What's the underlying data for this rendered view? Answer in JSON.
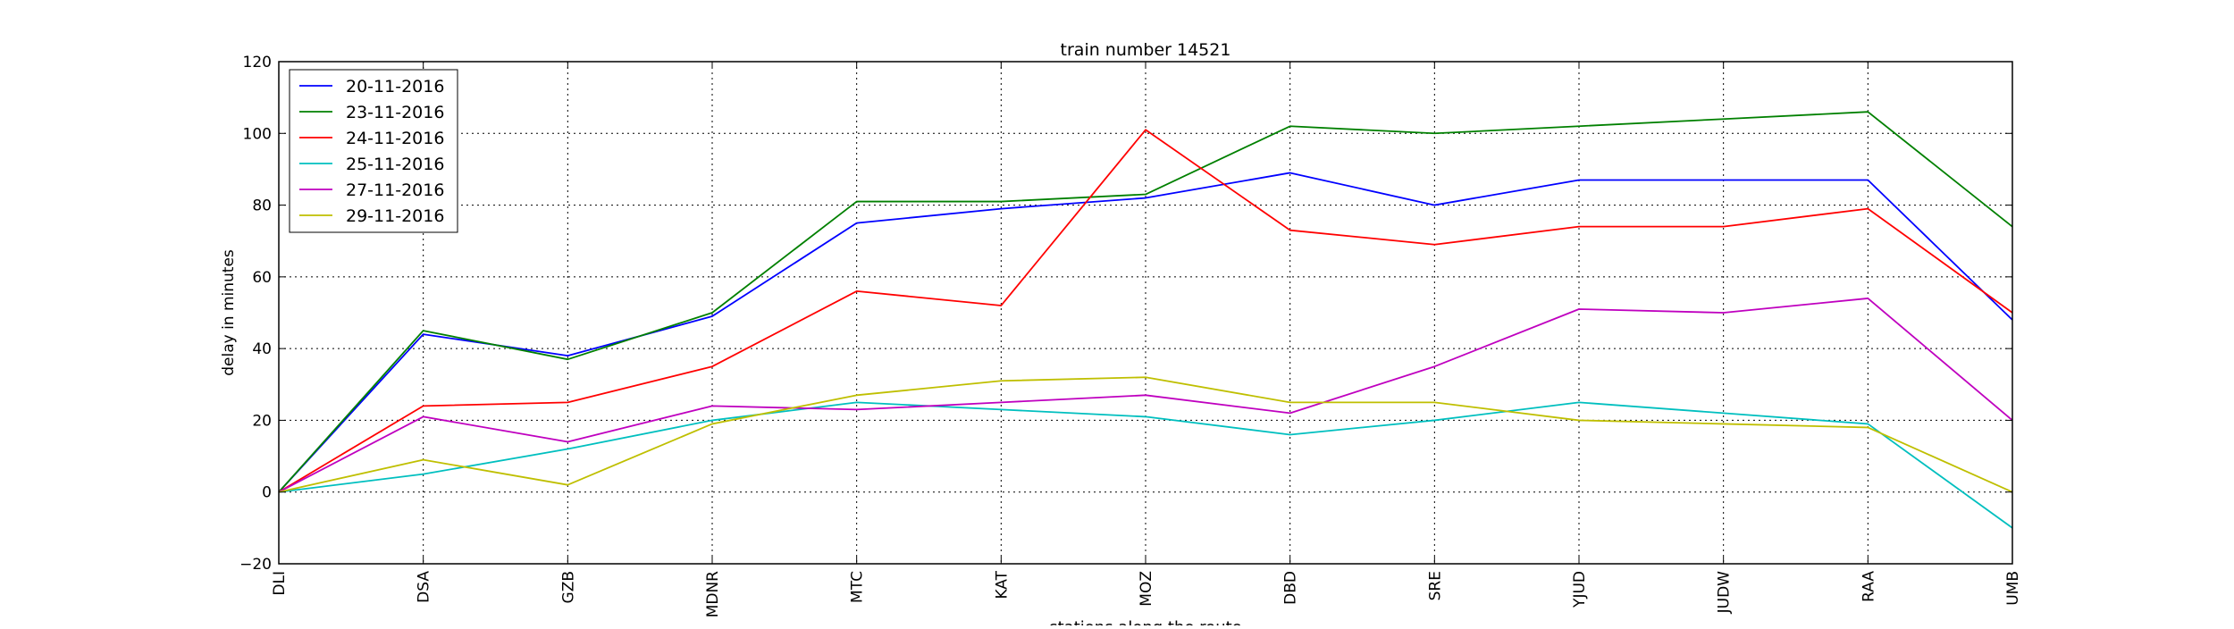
{
  "chart_data": {
    "type": "line",
    "title": "train number 14521",
    "xlabel": "stations along the route",
    "ylabel": "delay in minutes",
    "categories": [
      "DLI",
      "DSA",
      "GZB",
      "MDNR",
      "MTC",
      "KAT",
      "MOZ",
      "DBD",
      "SRE",
      "YJUD",
      "JUDW",
      "RAA",
      "UMB"
    ],
    "ylim": [
      -20,
      120
    ],
    "yticks": [
      -20,
      0,
      20,
      40,
      60,
      80,
      100,
      120
    ],
    "grid": true,
    "legend_position": "top-left",
    "series": [
      {
        "name": "20-11-2016",
        "color": "#0000ff",
        "values": [
          0,
          44,
          38,
          49,
          75,
          79,
          82,
          89,
          80,
          87,
          87,
          87,
          48
        ]
      },
      {
        "name": "23-11-2016",
        "color": "#008000",
        "values": [
          0,
          45,
          37,
          50,
          81,
          81,
          83,
          102,
          100,
          102,
          104,
          106,
          74
        ]
      },
      {
        "name": "24-11-2016",
        "color": "#ff0000",
        "values": [
          0,
          24,
          25,
          35,
          56,
          52,
          101,
          73,
          69,
          74,
          74,
          79,
          50
        ]
      },
      {
        "name": "25-11-2016",
        "color": "#00bfbf",
        "values": [
          0,
          5,
          12,
          20,
          25,
          23,
          21,
          16,
          20,
          25,
          22,
          19,
          -10
        ]
      },
      {
        "name": "27-11-2016",
        "color": "#bf00bf",
        "values": [
          0,
          21,
          14,
          24,
          23,
          25,
          27,
          22,
          35,
          51,
          50,
          54,
          20
        ]
      },
      {
        "name": "29-11-2016",
        "color": "#bfbf00",
        "values": [
          0,
          9,
          2,
          19,
          27,
          31,
          32,
          25,
          25,
          20,
          19,
          18,
          0
        ]
      }
    ]
  }
}
